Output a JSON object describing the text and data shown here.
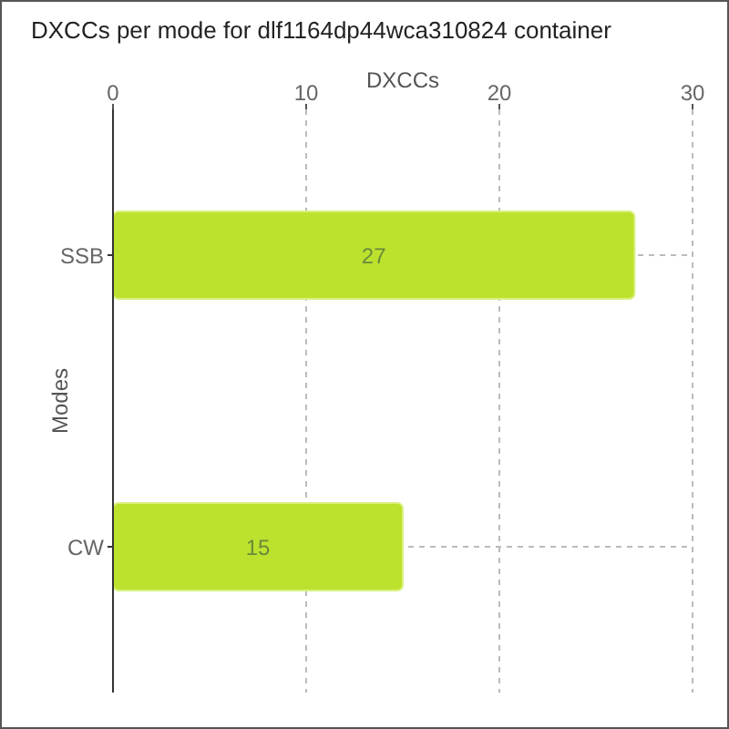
{
  "chart_data": {
    "type": "bar",
    "orientation": "horizontal",
    "title": "DXCCs per mode for dlf1164dp44wca310824 container",
    "xlabel": "DXCCs",
    "ylabel": "Modes",
    "categories": [
      "SSB",
      "CW"
    ],
    "values": [
      27,
      15
    ],
    "color": "#bde22e",
    "xlim": [
      0,
      30
    ],
    "xticks": [
      0,
      10,
      20,
      30
    ],
    "grid": true,
    "data_labels": true
  }
}
